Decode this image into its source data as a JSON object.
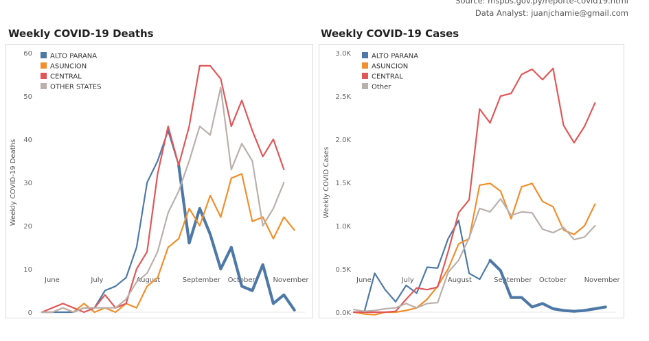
{
  "source": {
    "line1": "Source: mspbs.gov.py/reporte-covid19.html",
    "line2": "Data Analyst: juanjchamie@gmail.com"
  },
  "colors": {
    "alto_parana": "#4e79a7",
    "asuncion": "#f28e2b",
    "central": "#e15759",
    "other": "#bab0ac"
  },
  "chart_data": [
    {
      "type": "line",
      "title": "Weekly COVID-19 Deaths",
      "ylabel": "Weekly COVID-19 Deaths",
      "ylim": [
        0,
        60
      ],
      "yticks": [
        0,
        10,
        20,
        30,
        40,
        50,
        60
      ],
      "ytick_labels": [
        "0",
        "10",
        "20",
        "30",
        "40",
        "50",
        "60"
      ],
      "xlim": [
        0,
        25
      ],
      "months": [
        {
          "label": "June",
          "x": 0
        },
        {
          "label": "July",
          "x": 4.4
        },
        {
          "label": "August",
          "x": 8.7
        },
        {
          "label": "September",
          "x": 13.1
        },
        {
          "label": "October",
          "x": 17.4
        },
        {
          "label": "November",
          "x": 21.7
        }
      ],
      "grid": false,
      "legend_position": "top-left",
      "emphasized_series": "ALTO PARANA",
      "emphasized_from_x": 13,
      "series": [
        {
          "name": "ALTO PARANA",
          "color": "#4e79a7",
          "x": [
            0,
            1,
            2,
            3,
            4,
            5,
            6,
            7,
            8,
            9,
            10,
            11,
            12,
            13,
            14,
            15,
            16,
            17,
            18,
            19,
            20,
            21,
            22,
            23,
            24,
            25
          ],
          "values": [
            0,
            0,
            0,
            0,
            1,
            1,
            5,
            6,
            8,
            15,
            30,
            35,
            42,
            34,
            16,
            24,
            18,
            10,
            15,
            6,
            5,
            11,
            2,
            4,
            0.5,
            null
          ]
        },
        {
          "name": "ASUNCION",
          "color": "#f28e2b",
          "x": [
            0,
            1,
            2,
            3,
            4,
            5,
            6,
            7,
            8,
            9,
            10,
            11,
            12,
            13,
            14,
            15,
            16,
            17,
            18,
            19,
            20,
            21,
            22,
            23,
            24,
            25
          ],
          "values": [
            0,
            0,
            1,
            0,
            2,
            0,
            1,
            0,
            2,
            1,
            6,
            8,
            15,
            17,
            24,
            20,
            27,
            22,
            31,
            32,
            21,
            22,
            17,
            22,
            19,
            null
          ]
        },
        {
          "name": "CENTRAL",
          "color": "#e15759",
          "x": [
            0,
            1,
            2,
            3,
            4,
            5,
            6,
            7,
            8,
            9,
            10,
            11,
            12,
            13,
            14,
            15,
            16,
            17,
            18,
            19,
            20,
            21,
            22,
            23,
            24,
            25
          ],
          "values": [
            0,
            1,
            2,
            1,
            0,
            1,
            4,
            1,
            2,
            10,
            14,
            32,
            43,
            34,
            43,
            57,
            57,
            54,
            43,
            49,
            42,
            36,
            40,
            33,
            null,
            null
          ]
        },
        {
          "name": "OTHER STATES",
          "color": "#bab0ac",
          "x": [
            0,
            1,
            2,
            3,
            4,
            5,
            6,
            7,
            8,
            9,
            10,
            11,
            12,
            13,
            14,
            15,
            16,
            17,
            18,
            19,
            20,
            21,
            22,
            23,
            24,
            25
          ],
          "values": [
            0,
            0,
            1,
            0,
            1,
            1,
            1,
            1,
            3,
            7,
            9,
            14,
            23,
            28,
            35,
            43,
            41,
            52,
            33,
            39,
            35,
            20,
            24,
            30,
            null,
            null
          ]
        }
      ]
    },
    {
      "type": "line",
      "title": "Weekly COVID-19 Cases",
      "ylabel": "Weekly COVID Cases",
      "ylim": [
        0,
        3000
      ],
      "yticks": [
        0,
        500,
        1000,
        1500,
        2000,
        2500,
        3000
      ],
      "ytick_labels": [
        "0.0K",
        "0.5K",
        "1.0K",
        "1.5K",
        "2.0K",
        "2.5K",
        "3.0K"
      ],
      "xlim": [
        0,
        25
      ],
      "months": [
        {
          "label": "June",
          "x": 0
        },
        {
          "label": "July",
          "x": 4.3
        },
        {
          "label": "August",
          "x": 8.7
        },
        {
          "label": "September",
          "x": 13.1
        },
        {
          "label": "October",
          "x": 17.4
        },
        {
          "label": "November",
          "x": 21.7
        }
      ],
      "grid": false,
      "legend_position": "top-left",
      "emphasized_series": "ALTO PARANA",
      "emphasized_from_x": 13,
      "series": [
        {
          "name": "ALTO PARANA",
          "color": "#4e79a7",
          "x": [
            0,
            1,
            2,
            3,
            4,
            5,
            6,
            7,
            8,
            9,
            10,
            11,
            12,
            13,
            14,
            15,
            16,
            17,
            18,
            19,
            20,
            21,
            22,
            23,
            24,
            25
          ],
          "values": [
            0,
            0,
            450,
            260,
            120,
            310,
            220,
            520,
            510,
            850,
            1060,
            450,
            380,
            600,
            480,
            170,
            170,
            60,
            100,
            40,
            20,
            10,
            20,
            40,
            60,
            null
          ]
        },
        {
          "name": "ASUNCION",
          "color": "#f28e2b",
          "x": [
            0,
            1,
            2,
            3,
            4,
            5,
            6,
            7,
            8,
            9,
            10,
            11,
            12,
            13,
            14,
            15,
            16,
            17,
            18,
            19,
            20,
            21,
            22,
            23,
            24,
            25
          ],
          "values": [
            0,
            -20,
            -30,
            0,
            0,
            20,
            50,
            150,
            300,
            500,
            790,
            850,
            1470,
            1490,
            1400,
            1080,
            1450,
            1490,
            1280,
            1220,
            950,
            900,
            1000,
            1250,
            null,
            null
          ]
        },
        {
          "name": "CENTRAL",
          "color": "#e15759",
          "x": [
            0,
            1,
            2,
            3,
            4,
            5,
            6,
            7,
            8,
            9,
            10,
            11,
            12,
            13,
            14,
            15,
            16,
            17,
            18,
            19,
            20,
            21,
            22,
            23,
            24,
            25
          ],
          "values": [
            0,
            0,
            0,
            0,
            10,
            150,
            280,
            260,
            290,
            700,
            1150,
            1300,
            2350,
            2190,
            2500,
            2530,
            2750,
            2810,
            2690,
            2820,
            2160,
            1960,
            2150,
            2420,
            null,
            null
          ]
        },
        {
          "name": "Other",
          "color": "#bab0ac",
          "x": [
            0,
            1,
            2,
            3,
            4,
            5,
            6,
            7,
            8,
            9,
            10,
            11,
            12,
            13,
            14,
            15,
            16,
            17,
            18,
            19,
            20,
            21,
            22,
            23,
            24,
            25
          ],
          "values": [
            30,
            10,
            20,
            40,
            50,
            100,
            50,
            100,
            110,
            460,
            600,
            860,
            1200,
            1160,
            1310,
            1120,
            1160,
            1150,
            960,
            920,
            980,
            840,
            870,
            1000,
            null,
            null
          ]
        }
      ]
    }
  ]
}
